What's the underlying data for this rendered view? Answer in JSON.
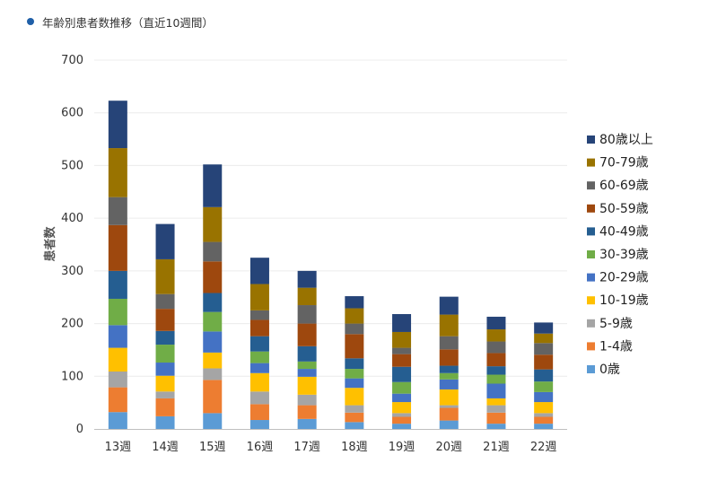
{
  "header": {
    "title": "年齢別患者数推移（直近10週間）",
    "bullet_color": "#1f5fa8"
  },
  "chart_data": {
    "type": "bar",
    "stacked": true,
    "title": "年齢別患者数推移（直近10週間）",
    "xlabel": "",
    "ylabel": "患者数",
    "ylim": [
      0,
      700
    ],
    "yticks": [
      0,
      100,
      200,
      300,
      400,
      500,
      600,
      700
    ],
    "grid": true,
    "legend_position": "right",
    "categories": [
      "13週",
      "14週",
      "15週",
      "16週",
      "17週",
      "18週",
      "19週",
      "20週",
      "21週",
      "22週"
    ],
    "series": [
      {
        "name": "0歳",
        "color": "#5b9bd5",
        "values": [
          32,
          24,
          30,
          17,
          19,
          13,
          10,
          16,
          10,
          10
        ]
      },
      {
        "name": "1-4歳",
        "color": "#ed7d31",
        "values": [
          47,
          34,
          63,
          30,
          26,
          18,
          13,
          24,
          21,
          13
        ]
      },
      {
        "name": "5-9歳",
        "color": "#a5a5a5",
        "values": [
          30,
          13,
          22,
          24,
          20,
          14,
          7,
          5,
          14,
          7
        ]
      },
      {
        "name": "10-19歳",
        "color": "#ffc000",
        "values": [
          45,
          30,
          30,
          35,
          34,
          33,
          21,
          30,
          13,
          21
        ]
      },
      {
        "name": "20-29歳",
        "color": "#4472c4",
        "values": [
          43,
          25,
          40,
          19,
          15,
          18,
          16,
          19,
          28,
          19
        ]
      },
      {
        "name": "30-39歳",
        "color": "#70ad47",
        "values": [
          50,
          34,
          37,
          22,
          14,
          18,
          22,
          12,
          17,
          20
        ]
      },
      {
        "name": "40-49歳",
        "color": "#255e91",
        "values": [
          53,
          26,
          36,
          29,
          29,
          20,
          29,
          14,
          16,
          23
        ]
      },
      {
        "name": "50-59歳",
        "color": "#9e480e",
        "values": [
          87,
          42,
          60,
          31,
          43,
          46,
          24,
          31,
          25,
          28
        ]
      },
      {
        "name": "60-69歳",
        "color": "#636363",
        "values": [
          53,
          28,
          37,
          18,
          35,
          20,
          12,
          25,
          22,
          22
        ]
      },
      {
        "name": "70-79歳",
        "color": "#997300",
        "values": [
          93,
          66,
          66,
          50,
          33,
          29,
          30,
          41,
          23,
          18
        ]
      },
      {
        "name": "80歳以上",
        "color": "#264478",
        "values": [
          90,
          67,
          81,
          50,
          32,
          23,
          34,
          34,
          24,
          21
        ]
      }
    ]
  }
}
